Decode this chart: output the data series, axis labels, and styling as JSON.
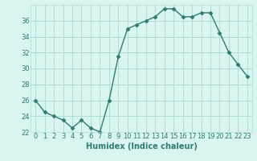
{
  "x": [
    0,
    1,
    2,
    3,
    4,
    5,
    6,
    7,
    8,
    9,
    10,
    11,
    12,
    13,
    14,
    15,
    16,
    17,
    18,
    19,
    20,
    21,
    22,
    23
  ],
  "y": [
    26.0,
    24.5,
    24.0,
    23.5,
    22.5,
    23.5,
    22.5,
    22.0,
    26.0,
    31.5,
    35.0,
    35.5,
    36.0,
    36.5,
    37.5,
    37.5,
    36.5,
    36.5,
    37.0,
    37.0,
    34.5,
    32.0,
    30.5,
    29.0
  ],
  "line_color": "#2e7d6e",
  "marker": "D",
  "marker_size": 2.5,
  "line_width": 1.0,
  "bg_color": "#d9f5f0",
  "grid_color": "#b0dcd5",
  "xlabel": "Humidex (Indice chaleur)",
  "xlabel_fontsize": 7,
  "tick_fontsize": 6,
  "ylim": [
    22,
    38
  ],
  "yticks": [
    22,
    24,
    26,
    28,
    30,
    32,
    34,
    36
  ],
  "xlim": [
    -0.5,
    23.5
  ],
  "xticks": [
    0,
    1,
    2,
    3,
    4,
    5,
    6,
    7,
    8,
    9,
    10,
    11,
    12,
    13,
    14,
    15,
    16,
    17,
    18,
    19,
    20,
    21,
    22,
    23
  ]
}
